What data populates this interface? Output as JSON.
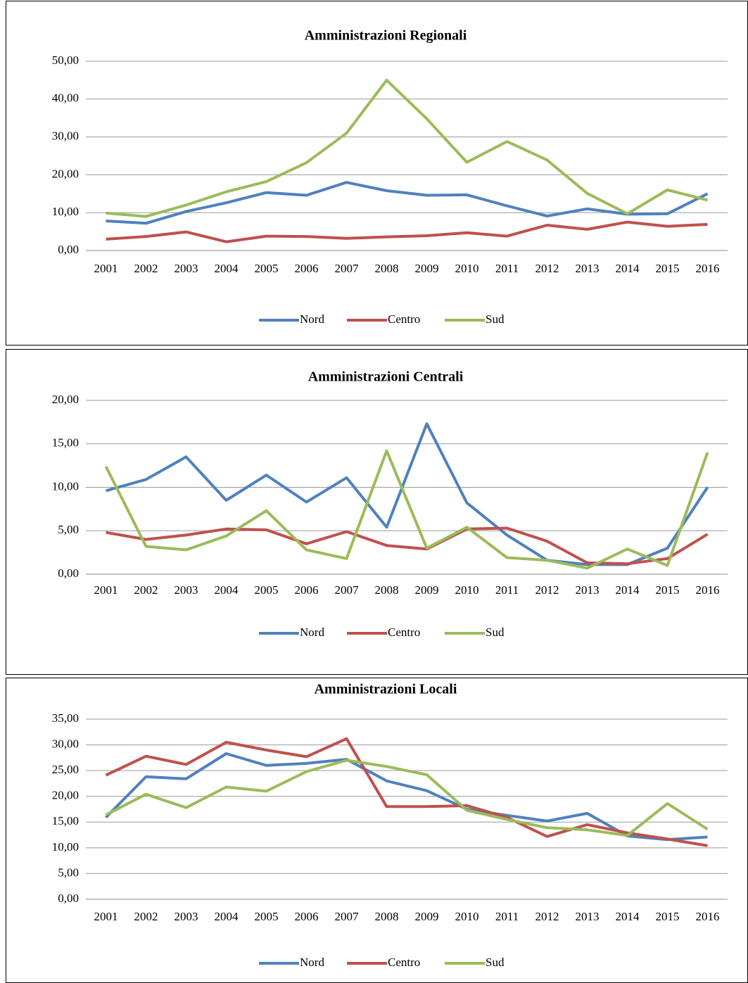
{
  "chart_data": [
    {
      "type": "line",
      "title": "Amministrazioni Regionali",
      "categories": [
        "2001",
        "2002",
        "2003",
        "2004",
        "2005",
        "2006",
        "2007",
        "2008",
        "2009",
        "2010",
        "2011",
        "2012",
        "2013",
        "2014",
        "2015",
        "2016"
      ],
      "series": [
        {
          "name": "Nord",
          "color": "#4f81bd",
          "values": [
            7.8,
            7.2,
            10.3,
            12.6,
            15.3,
            14.6,
            18.0,
            15.8,
            14.6,
            14.7,
            11.8,
            9.1,
            11.0,
            9.6,
            9.7,
            15.0
          ]
        },
        {
          "name": "Centro",
          "color": "#c0504d",
          "values": [
            3.0,
            3.7,
            4.9,
            2.3,
            3.8,
            3.7,
            3.2,
            3.6,
            3.9,
            4.7,
            3.8,
            6.7,
            5.6,
            7.5,
            6.4,
            6.9
          ]
        },
        {
          "name": "Sud",
          "color": "#9bbb59",
          "values": [
            9.9,
            9.0,
            12.0,
            15.5,
            18.2,
            23.2,
            31.0,
            45.0,
            34.8,
            23.3,
            28.8,
            23.9,
            15.1,
            9.7,
            16.0,
            13.3
          ]
        }
      ],
      "ylim": [
        0,
        50
      ],
      "yticks": [
        {
          "value": 0,
          "label": "0,00"
        },
        {
          "value": 10,
          "label": "10,00"
        },
        {
          "value": 20,
          "label": "20,00"
        },
        {
          "value": 30,
          "label": "30,00"
        },
        {
          "value": 40,
          "label": "40,00"
        },
        {
          "value": 50,
          "label": "50,00"
        }
      ],
      "grid": true,
      "legend": "bottom"
    },
    {
      "type": "line",
      "title": "Amministrazioni Centrali",
      "categories": [
        "2001",
        "2002",
        "2003",
        "2004",
        "2005",
        "2006",
        "2007",
        "2008",
        "2009",
        "2010",
        "2011",
        "2012",
        "2013",
        "2014",
        "2015",
        "2016"
      ],
      "series": [
        {
          "name": "Nord",
          "color": "#4f81bd",
          "values": [
            9.6,
            10.9,
            13.5,
            8.5,
            11.4,
            8.3,
            11.1,
            5.4,
            17.3,
            8.2,
            4.5,
            1.6,
            1.1,
            1.1,
            3.0,
            10.0
          ]
        },
        {
          "name": "Centro",
          "color": "#c0504d",
          "values": [
            4.8,
            4.0,
            4.5,
            5.2,
            5.1,
            3.5,
            4.9,
            3.3,
            2.9,
            5.2,
            5.3,
            3.8,
            1.3,
            1.2,
            1.8,
            4.6
          ]
        },
        {
          "name": "Sud",
          "color": "#9bbb59",
          "values": [
            12.4,
            3.2,
            2.8,
            4.4,
            7.3,
            2.8,
            1.8,
            14.2,
            3.0,
            5.4,
            1.9,
            1.6,
            0.7,
            2.9,
            1.0,
            14.0
          ]
        }
      ],
      "ylim": [
        0,
        20
      ],
      "yticks": [
        {
          "value": 0,
          "label": "0,00"
        },
        {
          "value": 5,
          "label": "5,00"
        },
        {
          "value": 10,
          "label": "10,00"
        },
        {
          "value": 15,
          "label": "15,00"
        },
        {
          "value": 20,
          "label": "20,00"
        }
      ],
      "grid": true,
      "legend": "bottom"
    },
    {
      "type": "line",
      "title": "Amministrazioni Locali",
      "categories": [
        "2001",
        "2002",
        "2003",
        "2004",
        "2005",
        "2006",
        "2007",
        "2008",
        "2009",
        "2010",
        "2011",
        "2012",
        "2013",
        "2014",
        "2015",
        "2016"
      ],
      "series": [
        {
          "name": "Nord",
          "color": "#4f81bd",
          "values": [
            15.9,
            23.8,
            23.4,
            28.3,
            26.0,
            26.4,
            27.2,
            23.0,
            21.1,
            17.5,
            16.3,
            15.2,
            16.7,
            12.3,
            11.6,
            12.1
          ]
        },
        {
          "name": "Centro",
          "color": "#c0504d",
          "values": [
            24.1,
            27.8,
            26.2,
            30.5,
            29.0,
            27.7,
            31.2,
            18.0,
            18.0,
            18.2,
            15.9,
            12.2,
            14.5,
            12.9,
            11.7,
            10.4
          ]
        },
        {
          "name": "Sud",
          "color": "#9bbb59",
          "values": [
            16.4,
            20.4,
            17.8,
            21.8,
            21.0,
            24.8,
            27.0,
            25.8,
            24.2,
            17.3,
            15.5,
            13.9,
            13.5,
            12.4,
            18.6,
            13.6
          ]
        }
      ],
      "ylim": [
        0,
        35
      ],
      "yticks": [
        {
          "value": 0,
          "label": "0,00"
        },
        {
          "value": 5,
          "label": "5,00"
        },
        {
          "value": 10,
          "label": "10,00"
        },
        {
          "value": 15,
          "label": "15,00"
        },
        {
          "value": 20,
          "label": "20,00"
        },
        {
          "value": 25,
          "label": "25,00"
        },
        {
          "value": 30,
          "label": "30,00"
        },
        {
          "value": 35,
          "label": "35,00"
        }
      ],
      "grid": true,
      "legend": "bottom"
    }
  ]
}
